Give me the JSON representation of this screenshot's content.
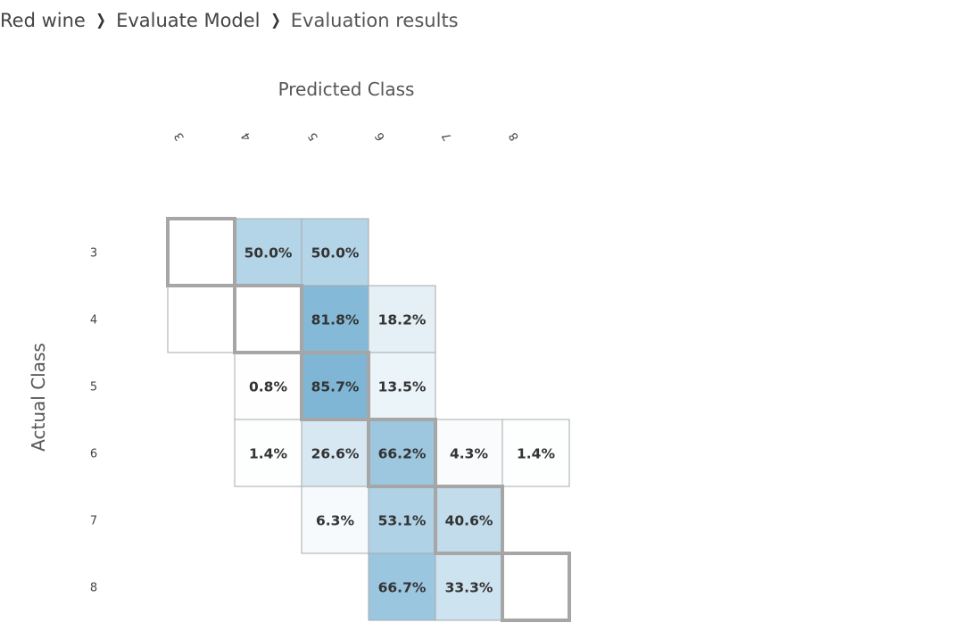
{
  "breadcrumb": {
    "items": [
      "Red wine",
      "Evaluate Model",
      "Evaluation results"
    ],
    "separator": "›"
  },
  "chart_data": {
    "type": "heatmap",
    "x_title": "Predicted Class",
    "y_title": "Actual Class",
    "x_labels": [
      "3",
      "4",
      "5",
      "6",
      "7",
      "8"
    ],
    "y_labels": [
      "3",
      "4",
      "5",
      "6",
      "7",
      "8"
    ],
    "values": [
      [
        0,
        50.0,
        50.0,
        0,
        0,
        0
      ],
      [
        0,
        0,
        81.8,
        18.2,
        0,
        0
      ],
      [
        0,
        0.8,
        85.7,
        13.5,
        0,
        0
      ],
      [
        0,
        1.4,
        26.6,
        66.2,
        4.3,
        1.4
      ],
      [
        0,
        0,
        6.3,
        53.1,
        40.6,
        0
      ],
      [
        0,
        0,
        0,
        66.7,
        33.3,
        0
      ]
    ],
    "labels": [
      [
        "",
        "50.0%",
        "50.0%",
        "",
        "",
        ""
      ],
      [
        "",
        "",
        "81.8%",
        "18.2%",
        "",
        ""
      ],
      [
        "",
        "0.8%",
        "85.7%",
        "13.5%",
        "",
        ""
      ],
      [
        "",
        "1.4%",
        "26.6%",
        "66.2%",
        "4.3%",
        "1.4%"
      ],
      [
        "",
        "",
        "6.3%",
        "53.1%",
        "40.6%",
        ""
      ],
      [
        "",
        "",
        "",
        "66.7%",
        "33.3%",
        ""
      ]
    ],
    "shown": [
      [
        1,
        1,
        1,
        0,
        0,
        0
      ],
      [
        1,
        1,
        1,
        1,
        0,
        0
      ],
      [
        0,
        1,
        1,
        1,
        0,
        0
      ],
      [
        0,
        1,
        1,
        1,
        1,
        1
      ],
      [
        0,
        0,
        1,
        1,
        1,
        0
      ],
      [
        0,
        0,
        0,
        1,
        1,
        1
      ]
    ],
    "colors": {
      "max": "#7fb6d6",
      "min": "#ffffff",
      "cell_border": "#a9a9a9",
      "diagonal_border": "#a6a6a6"
    }
  }
}
